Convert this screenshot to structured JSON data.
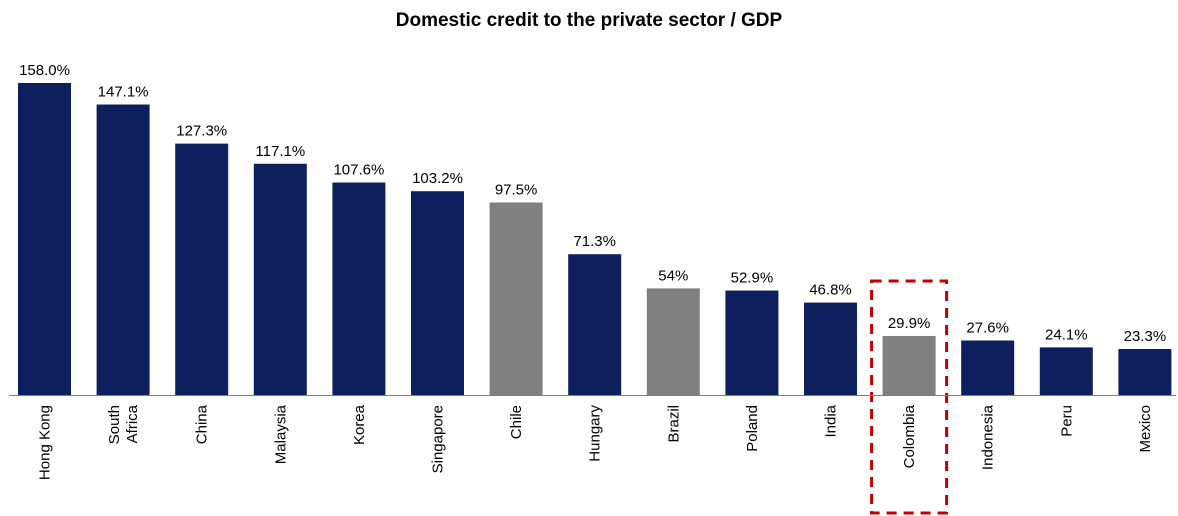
{
  "chart_data": {
    "type": "bar",
    "title": "Domestic credit to the private sector / GDP",
    "xlabel": "",
    "ylabel": "",
    "ylim": [
      0,
      158
    ],
    "grid": false,
    "legend": false,
    "categories": [
      "Hong Kong",
      "South Africa",
      "China",
      "Malaysia",
      "Korea",
      "Singapore",
      "Chile",
      "Hungary",
      "Brazil",
      "Poland",
      "India",
      "Colombia",
      "Indonesia",
      "Peru",
      "Mexico"
    ],
    "values": [
      158.0,
      147.1,
      127.3,
      117.1,
      107.6,
      103.2,
      97.5,
      71.3,
      54.0,
      52.9,
      46.8,
      29.9,
      27.6,
      24.1,
      23.3
    ],
    "value_labels": [
      "158.0%",
      "147.1%",
      "127.3%",
      "117.1%",
      "107.6%",
      "103.2%",
      "97.5%",
      "71.3%",
      "54%",
      "52.9%",
      "46.8%",
      "29.9%",
      "27.6%",
      "24.1%",
      "23.3%"
    ],
    "highlighted": [
      "Chile",
      "Brazil",
      "Colombia"
    ],
    "boxed_category": "Colombia",
    "colors": {
      "primary": "#0d1f5c",
      "highlight": "#808080",
      "box": "#c00000"
    }
  }
}
